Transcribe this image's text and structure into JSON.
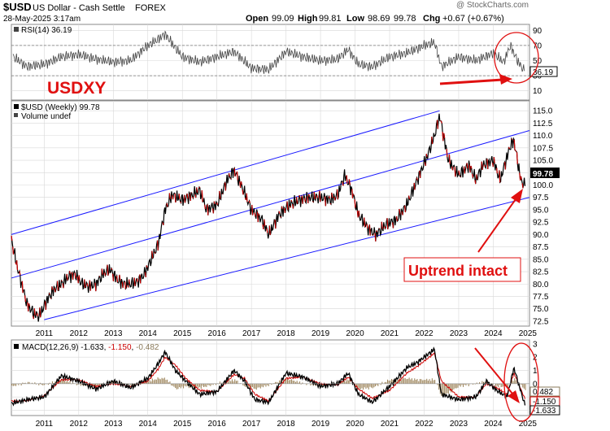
{
  "header": {
    "symbol": "$USD",
    "name": "US Dollar - Cash Settle",
    "exchange": "FOREX",
    "date": "28-May-2025 3:17am",
    "open_label": "Open",
    "open": "99.09",
    "high_label": "High",
    "high": "99.81",
    "low_label": "Low",
    "low": "98.69",
    "last": "99.78",
    "chg_label": "Chg",
    "chg": "+0.67 (+0.67%)",
    "watermark": "@ StockCharts.com"
  },
  "annotations": {
    "title": "USDXY",
    "uptrend": "Uptrend intact",
    "color": "#e01010"
  },
  "rsi_panel": {
    "label": "RSI(14) 36.19",
    "value_badge": "36.19",
    "ticks": [
      "90",
      "70",
      "50",
      "30",
      "10"
    ]
  },
  "price_panel": {
    "legend": "$USD (Weekly) 99.78",
    "volume_legend": "Volume undef",
    "last_badge": "99.78",
    "ticks": [
      "115.0",
      "112.5",
      "110.0",
      "107.5",
      "105.0",
      "102.5",
      "100.0",
      "97.5",
      "95.0",
      "92.5",
      "90.0",
      "87.5",
      "85.0",
      "82.5",
      "80.0",
      "77.5",
      "75.0",
      "72.5"
    ]
  },
  "macd_panel": {
    "legend_prefix": "MACD(12,26,9)",
    "macd": "-1.633",
    "signal": "-1.150",
    "hist": "-0.482",
    "badge_hist": "0.482",
    "badge_signal": "-1.150",
    "badge_macd": "-1.633",
    "ticks": [
      "3",
      "2",
      "1",
      "0",
      "-1",
      "-2"
    ]
  },
  "x_labels": [
    "2011",
    "2012",
    "2013",
    "2014",
    "2015",
    "2016",
    "2017",
    "2018",
    "2019",
    "2020",
    "2021",
    "2022",
    "2023",
    "2024",
    "2025"
  ],
  "colors": {
    "channel": "#1a1aff",
    "price": "#000000",
    "price_alt": "#cc0000",
    "rsi": "#444444",
    "hist": "#a08860",
    "signal": "#cc0000",
    "panel_bg": "#ffffff",
    "grid": "#d8d8d8"
  },
  "chart_data": [
    {
      "type": "line",
      "title": "RSI(14)",
      "ylim": [
        0,
        100
      ],
      "reference_lines": [
        70,
        30
      ],
      "x": [
        2010.6,
        2011.0,
        2011.5,
        2012.0,
        2012.5,
        2013.0,
        2013.5,
        2014.0,
        2014.5,
        2014.8,
        2015.0,
        2015.5,
        2016.0,
        2016.5,
        2017.0,
        2017.5,
        2018.0,
        2018.5,
        2019.0,
        2019.5,
        2020.0,
        2020.3,
        2020.6,
        2021.0,
        2021.5,
        2022.0,
        2022.5,
        2022.8,
        2023.0,
        2023.5,
        2024.0,
        2024.5,
        2024.8,
        2025.0,
        2025.2,
        2025.4
      ],
      "values": [
        55,
        42,
        45,
        55,
        58,
        52,
        48,
        50,
        70,
        78,
        85,
        55,
        48,
        55,
        62,
        40,
        38,
        62,
        55,
        50,
        52,
        65,
        45,
        42,
        55,
        60,
        70,
        74,
        42,
        55,
        50,
        60,
        48,
        70,
        50,
        36.19
      ]
    },
    {
      "type": "line",
      "title": "$USD (Weekly)",
      "ylabel": "",
      "ylim": [
        72.5,
        115.0
      ],
      "x": [
        2010.55,
        2010.7,
        2011.0,
        2011.2,
        2011.35,
        2011.6,
        2011.8,
        2012.0,
        2012.2,
        2012.4,
        2012.6,
        2012.8,
        2013.0,
        2013.2,
        2013.4,
        2013.6,
        2013.8,
        2014.0,
        2014.2,
        2014.4,
        2014.6,
        2014.8,
        2015.0,
        2015.2,
        2015.5,
        2015.8,
        2016.0,
        2016.2,
        2016.5,
        2016.8,
        2017.0,
        2017.2,
        2017.5,
        2017.8,
        2018.0,
        2018.3,
        2018.6,
        2018.9,
        2019.2,
        2019.5,
        2019.8,
        2020.0,
        2020.2,
        2020.4,
        2020.6,
        2020.9,
        2021.1,
        2021.4,
        2021.7,
        2022.0,
        2022.3,
        2022.6,
        2022.8,
        2022.95,
        2023.2,
        2023.5,
        2023.8,
        2024.0,
        2024.2,
        2024.5,
        2024.7,
        2025.0,
        2025.1,
        2025.3,
        2025.42
      ],
      "values": [
        89,
        84,
        76,
        74,
        73.5,
        77,
        79,
        80,
        81.5,
        82,
        80,
        79.5,
        80,
        82,
        83,
        81,
        80,
        80,
        80.5,
        82,
        85,
        88,
        95,
        98,
        97,
        98,
        99,
        95,
        96,
        101,
        103,
        100,
        95,
        93,
        90,
        94,
        96,
        97,
        97.5,
        97.5,
        97,
        98,
        102,
        99,
        94,
        91,
        90,
        92,
        93,
        96,
        101,
        106,
        110,
        114,
        105,
        102,
        104,
        101,
        104,
        105,
        101,
        108,
        109,
        101,
        99.78
      ]
    },
    {
      "type": "line",
      "title": "MACD(12,26,9)",
      "ylim": [
        -2,
        3
      ],
      "series": [
        {
          "name": "MACD",
          "x": [
            2010.55,
            2011.0,
            2011.5,
            2012.0,
            2012.5,
            2013.0,
            2013.5,
            2014.0,
            2014.5,
            2014.8,
            2015.0,
            2015.3,
            2015.6,
            2016.0,
            2016.5,
            2017.0,
            2017.3,
            2017.6,
            2018.0,
            2018.5,
            2019.0,
            2019.5,
            2020.0,
            2020.3,
            2020.6,
            2021.0,
            2021.5,
            2022.0,
            2022.3,
            2022.6,
            2022.8,
            2023.0,
            2023.5,
            2024.0,
            2024.3,
            2024.6,
            2024.9,
            2025.1,
            2025.42
          ],
          "values": [
            -1.5,
            -1.2,
            -1.0,
            0.6,
            0.2,
            -0.4,
            0.2,
            -0.3,
            0.4,
            1.5,
            2.4,
            1.0,
            0.2,
            -0.8,
            -0.6,
            1.0,
            0.2,
            -1.2,
            -1.4,
            0.8,
            0.5,
            -0.2,
            0.0,
            0.8,
            -0.8,
            -1.4,
            -0.2,
            1.2,
            1.6,
            2.2,
            2.6,
            -0.8,
            -1.2,
            -1.0,
            0.2,
            -0.5,
            -1.0,
            1.2,
            -1.633
          ]
        },
        {
          "name": "Signal",
          "x": [
            2010.55,
            2011.0,
            2011.5,
            2012.0,
            2012.5,
            2013.0,
            2013.5,
            2014.0,
            2014.5,
            2014.8,
            2015.0,
            2015.3,
            2015.6,
            2016.0,
            2016.5,
            2017.0,
            2017.3,
            2017.6,
            2018.0,
            2018.5,
            2019.0,
            2019.5,
            2020.0,
            2020.3,
            2020.6,
            2021.0,
            2021.5,
            2022.0,
            2022.3,
            2022.6,
            2022.8,
            2023.0,
            2023.5,
            2024.0,
            2024.3,
            2024.6,
            2024.9,
            2025.1,
            2025.42
          ],
          "values": [
            -1.3,
            -1.3,
            -0.9,
            0.3,
            0.3,
            -0.2,
            0.0,
            -0.2,
            0.2,
            1.1,
            2.0,
            1.4,
            0.4,
            -0.5,
            -0.6,
            0.7,
            0.4,
            -0.8,
            -1.3,
            0.4,
            0.5,
            0.0,
            -0.1,
            0.5,
            -0.4,
            -1.1,
            -0.5,
            0.8,
            1.3,
            1.9,
            2.3,
            0.2,
            -1.0,
            -1.0,
            0.0,
            -0.3,
            -0.8,
            0.8,
            -1.15
          ]
        }
      ]
    }
  ]
}
